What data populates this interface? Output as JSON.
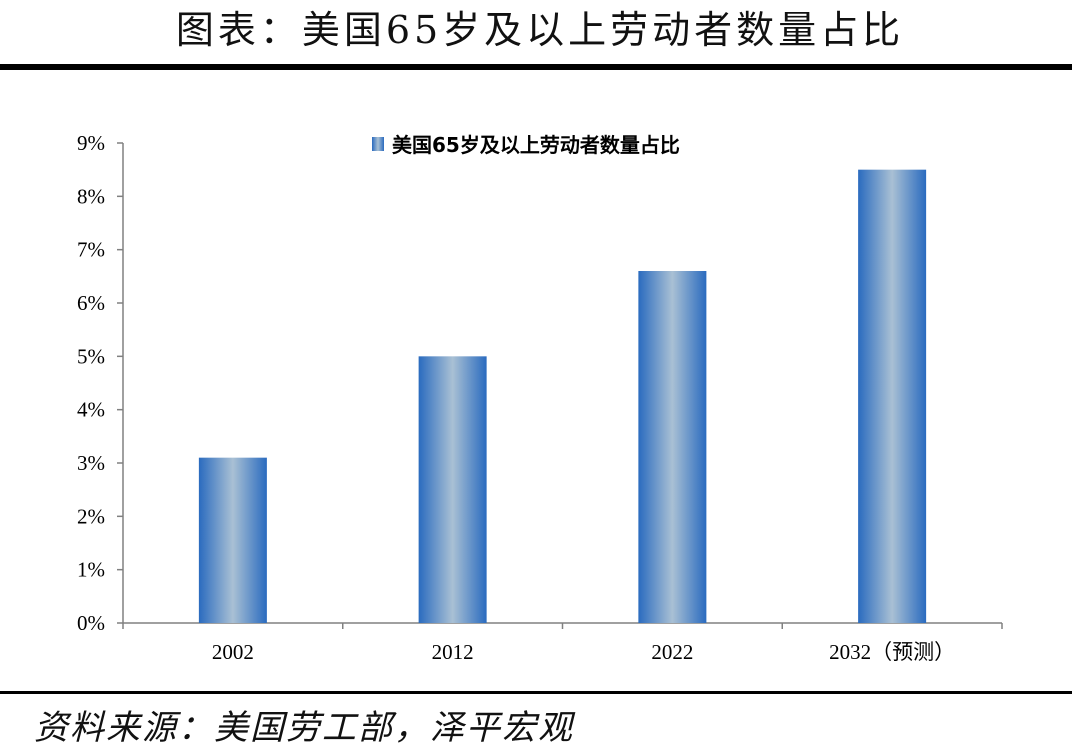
{
  "header": {
    "title": "图表：美国65岁及以上劳动者数量占比"
  },
  "footer": {
    "source": "资料来源：美国劳工部，泽平宏观"
  },
  "chart_data": {
    "type": "bar",
    "categories": [
      "2002",
      "2012",
      "2022",
      "2032（预测）"
    ],
    "series": [
      {
        "name": "美国65岁及以上劳动者数量占比",
        "values": [
          3.1,
          5.0,
          6.6,
          8.5
        ]
      }
    ],
    "ylim": [
      0,
      9
    ],
    "yticks": [
      "0%",
      "1%",
      "2%",
      "3%",
      "4%",
      "5%",
      "6%",
      "7%",
      "8%",
      "9%"
    ],
    "legend_position": "top",
    "grid": false,
    "colors": {
      "bar_edge": "#2a6bbf",
      "bar_center": "#a9c0d4"
    }
  }
}
